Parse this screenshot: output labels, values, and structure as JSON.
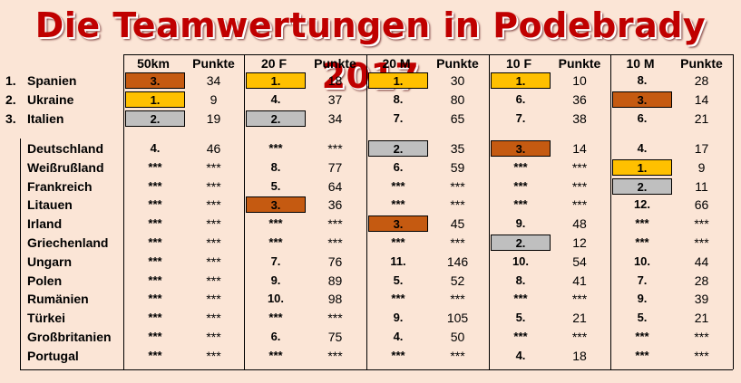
{
  "title": "Die Teamwertungen in Podebrady 2017",
  "colors": {
    "title": "#c00000",
    "background": "#fbe5d6",
    "gold": "#ffc000",
    "silver": "#bfbfbf",
    "bronze": "#c55a11"
  },
  "headers": [
    "50km",
    "Punkte",
    "20 F",
    "Punkte",
    "20 M",
    "Punkte",
    "10 F",
    "Punkte",
    "10 M",
    "Punkte"
  ],
  "top_rows": [
    {
      "rank": "1.",
      "country": "Spanien",
      "cells": [
        [
          "3.",
          "34",
          "bronze"
        ],
        [
          "1.",
          "18",
          "gold"
        ],
        [
          "1.",
          "30",
          "gold"
        ],
        [
          "1.",
          "10",
          "gold"
        ],
        [
          "8.",
          "28",
          ""
        ]
      ]
    },
    {
      "rank": "2.",
      "country": "Ukraine",
      "cells": [
        [
          "1.",
          "9",
          "gold"
        ],
        [
          "4.",
          "37",
          ""
        ],
        [
          "8.",
          "80",
          ""
        ],
        [
          "6.",
          "36",
          ""
        ],
        [
          "3.",
          "14",
          "bronze"
        ]
      ]
    },
    {
      "rank": "3.",
      "country": "Italien",
      "cells": [
        [
          "2.",
          "19",
          "silver"
        ],
        [
          "2.",
          "34",
          "silver"
        ],
        [
          "7.",
          "65",
          ""
        ],
        [
          "7.",
          "38",
          ""
        ],
        [
          "6.",
          "21",
          ""
        ]
      ]
    }
  ],
  "other_rows": [
    {
      "country": "Deutschland",
      "cells": [
        [
          "4.",
          "46",
          ""
        ],
        [
          "***",
          "***",
          ""
        ],
        [
          "2.",
          "35",
          "silver"
        ],
        [
          "3.",
          "14",
          "bronze"
        ],
        [
          "4.",
          "17",
          ""
        ]
      ]
    },
    {
      "country": "Weißrußland",
      "cells": [
        [
          "***",
          "***",
          ""
        ],
        [
          "8.",
          "77",
          ""
        ],
        [
          "6.",
          "59",
          ""
        ],
        [
          "***",
          "***",
          ""
        ],
        [
          "1.",
          "9",
          "gold"
        ]
      ]
    },
    {
      "country": "Frankreich",
      "cells": [
        [
          "***",
          "***",
          ""
        ],
        [
          "5.",
          "64",
          ""
        ],
        [
          "***",
          "***",
          ""
        ],
        [
          "***",
          "***",
          ""
        ],
        [
          "2.",
          "11",
          "silver"
        ]
      ]
    },
    {
      "country": "Litauen",
      "cells": [
        [
          "***",
          "***",
          ""
        ],
        [
          "3.",
          "36",
          "bronze"
        ],
        [
          "***",
          "***",
          ""
        ],
        [
          "***",
          "***",
          ""
        ],
        [
          "12.",
          "66",
          ""
        ]
      ]
    },
    {
      "country": "Irland",
      "cells": [
        [
          "***",
          "***",
          ""
        ],
        [
          "***",
          "***",
          ""
        ],
        [
          "3.",
          "45",
          "bronze"
        ],
        [
          "9.",
          "48",
          ""
        ],
        [
          "***",
          "***",
          ""
        ]
      ]
    },
    {
      "country": "Griechenland",
      "cells": [
        [
          "***",
          "***",
          ""
        ],
        [
          "***",
          "***",
          ""
        ],
        [
          "***",
          "***",
          ""
        ],
        [
          "2.",
          "12",
          "silver"
        ],
        [
          "***",
          "***",
          ""
        ]
      ]
    },
    {
      "country": "Ungarn",
      "cells": [
        [
          "***",
          "***",
          ""
        ],
        [
          "7.",
          "76",
          ""
        ],
        [
          "11.",
          "146",
          ""
        ],
        [
          "10.",
          "54",
          ""
        ],
        [
          "10.",
          "44",
          ""
        ]
      ]
    },
    {
      "country": "Polen",
      "cells": [
        [
          "***",
          "***",
          ""
        ],
        [
          "9.",
          "89",
          ""
        ],
        [
          "5.",
          "52",
          ""
        ],
        [
          "8.",
          "41",
          ""
        ],
        [
          "7.",
          "28",
          ""
        ]
      ]
    },
    {
      "country": "Rumänien",
      "cells": [
        [
          "***",
          "***",
          ""
        ],
        [
          "10.",
          "98",
          ""
        ],
        [
          "***",
          "***",
          ""
        ],
        [
          "***",
          "***",
          ""
        ],
        [
          "9.",
          "39",
          ""
        ]
      ]
    },
    {
      "country": "Türkei",
      "cells": [
        [
          "***",
          "***",
          ""
        ],
        [
          "***",
          "***",
          ""
        ],
        [
          "9.",
          "105",
          ""
        ],
        [
          "5.",
          "21",
          ""
        ],
        [
          "5.",
          "21",
          ""
        ]
      ]
    },
    {
      "country": "Großbritanien",
      "cells": [
        [
          "***",
          "***",
          ""
        ],
        [
          "6.",
          "75",
          ""
        ],
        [
          "4.",
          "50",
          ""
        ],
        [
          "***",
          "***",
          ""
        ],
        [
          "***",
          "***",
          ""
        ]
      ]
    },
    {
      "country": "Portugal",
      "cells": [
        [
          "***",
          "***",
          ""
        ],
        [
          "***",
          "***",
          ""
        ],
        [
          "***",
          "***",
          ""
        ],
        [
          "4.",
          "18",
          ""
        ],
        [
          "***",
          "***",
          ""
        ]
      ]
    }
  ]
}
